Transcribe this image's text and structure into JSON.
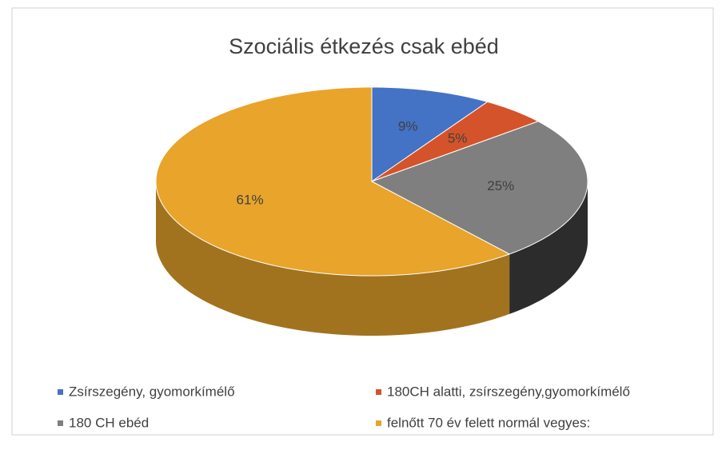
{
  "chart_data": {
    "type": "pie3d",
    "title": "Szociális étkezés csak ebéd",
    "categories": [
      "Zsírszegény, gyomorkímélő",
      "180CH alatti, zsírszegény,gyomorkímélő",
      "180 CH ebéd",
      "felnőtt 70 év felett normál vegyes:"
    ],
    "values": [
      9,
      5,
      25,
      61
    ],
    "value_labels": [
      "9%",
      "5%",
      "25%",
      "61%"
    ],
    "colors": [
      "#4472c4",
      "#d4532a",
      "#7f7f7f",
      "#e8a42b"
    ],
    "legend": "bottom"
  }
}
